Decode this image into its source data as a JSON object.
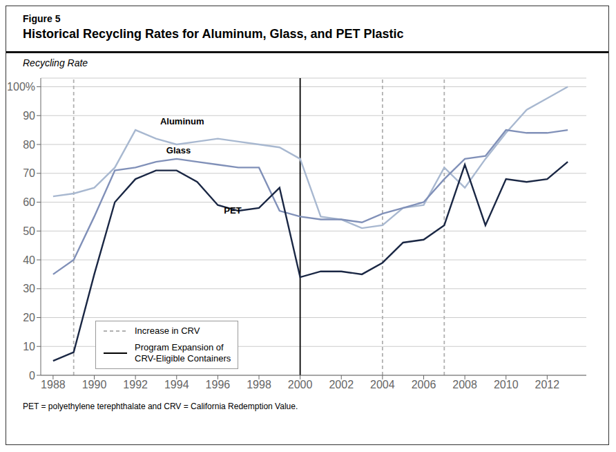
{
  "chart_data": {
    "type": "line",
    "figure_label": "Figure 5",
    "title": "Historical Recycling Rates for Aluminum, Glass, and PET Plastic",
    "y_label": "Recycling Rate",
    "footnote": "PET = polyethylene terephthalate and CRV = California Redemption Value.",
    "x": [
      1988,
      1989,
      1990,
      1991,
      1992,
      1993,
      1994,
      1995,
      1996,
      1997,
      1998,
      1999,
      2000,
      2001,
      2002,
      2003,
      2004,
      2005,
      2006,
      2007,
      2008,
      2009,
      2010,
      2011,
      2012,
      2013
    ],
    "series": [
      {
        "name": "Aluminum",
        "color": "#a8b8d0",
        "values": [
          62,
          63,
          65,
          72,
          85,
          82,
          80,
          81,
          82,
          81,
          80,
          79,
          75,
          55,
          54,
          51,
          52,
          58,
          59,
          72,
          65,
          75,
          84,
          92,
          96,
          100
        ]
      },
      {
        "name": "Glass",
        "color": "#8090b8",
        "values": [
          35,
          40,
          55,
          71,
          72,
          74,
          75,
          74,
          73,
          72,
          72,
          57,
          55,
          54,
          54,
          53,
          56,
          58,
          60,
          68,
          75,
          76,
          85,
          84,
          84,
          85
        ]
      },
      {
        "name": "PET",
        "color": "#1a2744",
        "values": [
          5,
          8,
          35,
          60,
          68,
          71,
          71,
          67,
          59,
          57,
          58,
          65,
          34,
          36,
          36,
          35,
          39,
          46,
          47,
          52,
          73,
          52,
          68,
          67,
          68,
          74
        ]
      }
    ],
    "xlim": [
      1987.4,
      2013.9
    ],
    "xticks": [
      1988,
      1990,
      1992,
      1994,
      1996,
      1998,
      2000,
      2002,
      2004,
      2006,
      2008,
      2010,
      2012
    ],
    "ylim": [
      0,
      103
    ],
    "yticks": [
      0,
      10,
      20,
      30,
      40,
      50,
      60,
      70,
      80,
      90,
      {
        "value": 100,
        "label": "100%"
      }
    ],
    "grid": "y",
    "legend": "lower left",
    "reference_lines": [
      {
        "name": "Increase in CRV",
        "x": [
          1989,
          2004,
          2007
        ],
        "color": "#b0b0b0",
        "line_style": "dashed"
      },
      {
        "name": "Program Expansion of\nCRV-Eligible Containers",
        "x": [
          2000
        ],
        "color": "#000000",
        "line_style": "solid"
      }
    ],
    "annotations": [
      {
        "text": "Aluminum",
        "x": 1993.2,
        "y": 87
      },
      {
        "text": "Glass",
        "x": 1993.5,
        "y": 77
      },
      {
        "text": "PET",
        "x": 1996.3,
        "y": 56
      }
    ]
  }
}
